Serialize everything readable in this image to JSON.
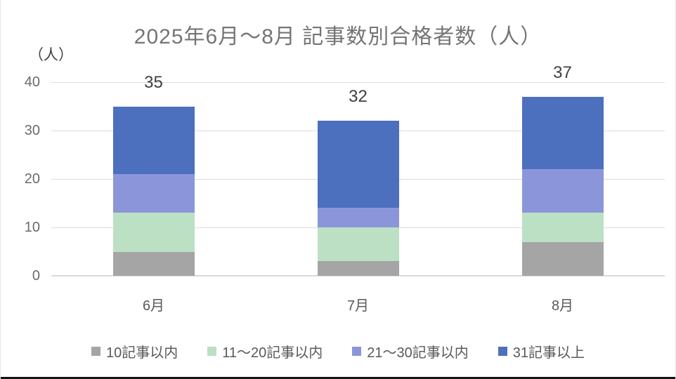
{
  "chart_data": {
    "type": "bar",
    "stacked": true,
    "title": "2025年6月〜8月 記事数別合格者数（人）",
    "ylabel": "（人）",
    "xlabel": "",
    "categories": [
      "6月",
      "7月",
      "8月"
    ],
    "series": [
      {
        "name": "10記事以内",
        "color": "#A5A5A5",
        "values": [
          5,
          3,
          7
        ]
      },
      {
        "name": "11〜20記事以内",
        "color": "#BCE0C3",
        "values": [
          8,
          7,
          6
        ]
      },
      {
        "name": "21〜30記事以内",
        "color": "#8B96DA",
        "values": [
          8,
          4,
          9
        ]
      },
      {
        "name": "31記事以上",
        "color": "#4C6FBE",
        "values": [
          14,
          18,
          15
        ]
      }
    ],
    "totals": [
      35,
      32,
      37
    ],
    "ylim": [
      0,
      40
    ],
    "yticks": [
      0,
      10,
      20,
      30,
      40
    ],
    "grid": true,
    "legend_position": "bottom",
    "colors": {
      "title_text": "#757575",
      "axis_text": "#6b6b6b",
      "data_label_text": "#404040",
      "gridline": "#dcdcdc"
    }
  }
}
